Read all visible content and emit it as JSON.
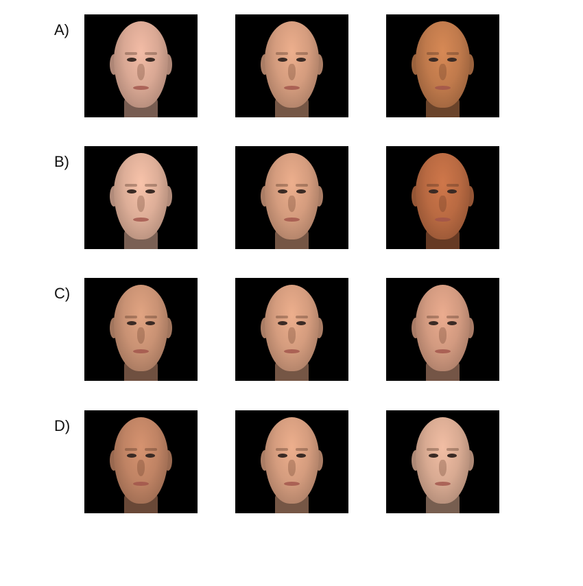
{
  "rows": [
    {
      "label": "A)",
      "skin": [
        "#d9a894",
        "#d49c7e",
        "#c07a4c"
      ]
    },
    {
      "label": "B)",
      "skin": [
        "#ddae98",
        "#d49c7e",
        "#b96a42"
      ]
    },
    {
      "label": "C)",
      "skin": [
        "#c99274",
        "#d49c7e",
        "#d29a80"
      ]
    },
    {
      "label": "D)",
      "skin": [
        "#bf8364",
        "#d49c7e",
        "#d8aa92"
      ]
    }
  ]
}
